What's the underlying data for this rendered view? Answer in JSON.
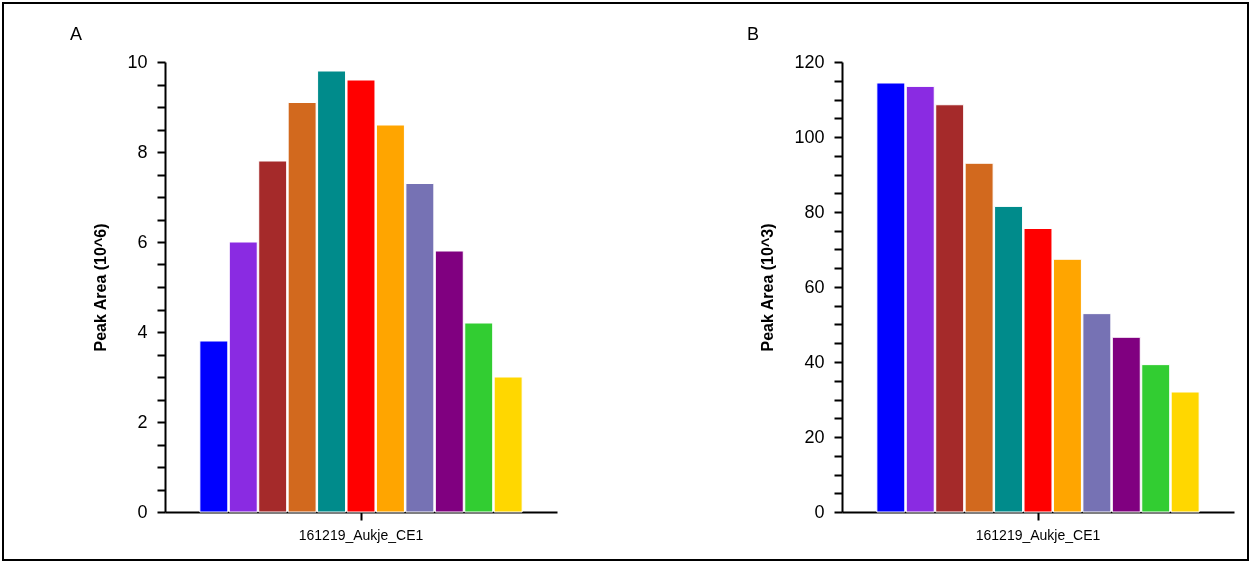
{
  "chart_data": [
    {
      "type": "bar",
      "title": "A",
      "ylabel": "Peak Area (10^6)",
      "categories": [
        "161219_Aukje_CE1"
      ],
      "series": [
        {
          "color": "#0000ff",
          "values": [
            3.8
          ]
        },
        {
          "color": "#8a2be2",
          "values": [
            6.0
          ]
        },
        {
          "color": "#a52a2a",
          "values": [
            7.8
          ]
        },
        {
          "color": "#d2691e",
          "values": [
            9.1
          ]
        },
        {
          "color": "#008b8b",
          "values": [
            9.8
          ]
        },
        {
          "color": "#ff0000",
          "values": [
            9.6
          ]
        },
        {
          "color": "#ffa500",
          "values": [
            8.6
          ]
        },
        {
          "color": "#7672b4",
          "values": [
            7.3
          ]
        },
        {
          "color": "#800080",
          "values": [
            5.8
          ]
        },
        {
          "color": "#32cd32",
          "values": [
            4.2
          ]
        },
        {
          "color": "#ffd700",
          "values": [
            3.0
          ]
        }
      ],
      "ylim": [
        0,
        10
      ],
      "yticks": [
        0,
        {
          "value": 0.5,
          "label": null
        },
        {
          "value": 1,
          "label": null
        },
        {
          "value": 1.5,
          "label": null
        },
        2,
        {
          "value": 2.5,
          "label": null
        },
        {
          "value": 3,
          "label": null
        },
        {
          "value": 3.5,
          "label": null
        },
        4,
        {
          "value": 4.5,
          "label": null
        },
        {
          "value": 5,
          "label": null
        },
        {
          "value": 5.5,
          "label": null
        },
        6,
        {
          "value": 6.5,
          "label": null
        },
        {
          "value": 7,
          "label": null
        },
        {
          "value": 7.5,
          "label": null
        },
        8,
        {
          "value": 8.5,
          "label": null
        },
        {
          "value": 9,
          "label": null
        },
        {
          "value": 9.5,
          "label": null
        },
        10
      ],
      "grid": false
    },
    {
      "type": "bar",
      "title": "B",
      "ylabel": "Peak Area (10^3)",
      "categories": [
        "161219_Aukje_CE1"
      ],
      "series": [
        {
          "color": "#0000ff",
          "values": [
            114.4
          ]
        },
        {
          "color": "#8a2be2",
          "values": [
            113.5
          ]
        },
        {
          "color": "#a52a2a",
          "values": [
            108.6
          ]
        },
        {
          "color": "#d2691e",
          "values": [
            93.0
          ]
        },
        {
          "color": "#008b8b",
          "values": [
            81.5
          ]
        },
        {
          "color": "#ff0000",
          "values": [
            75.6
          ]
        },
        {
          "color": "#ffa500",
          "values": [
            67.4
          ]
        },
        {
          "color": "#7672b4",
          "values": [
            52.9
          ]
        },
        {
          "color": "#800080",
          "values": [
            46.6
          ]
        },
        {
          "color": "#32cd32",
          "values": [
            39.3
          ]
        },
        {
          "color": "#ffd700",
          "values": [
            32.0
          ]
        }
      ],
      "ylim": [
        0,
        120
      ],
      "yticks": [
        0,
        {
          "value": 5,
          "label": null
        },
        {
          "value": 10,
          "label": null
        },
        {
          "value": 15,
          "label": null
        },
        20,
        {
          "value": 25,
          "label": null
        },
        {
          "value": 30,
          "label": null
        },
        {
          "value": 35,
          "label": null
        },
        40,
        {
          "value": 45,
          "label": null
        },
        {
          "value": 50,
          "label": null
        },
        {
          "value": 55,
          "label": null
        },
        60,
        {
          "value": 65,
          "label": null
        },
        {
          "value": 70,
          "label": null
        },
        {
          "value": 75,
          "label": null
        },
        80,
        {
          "value": 85,
          "label": null
        },
        {
          "value": 90,
          "label": null
        },
        {
          "value": 95,
          "label": null
        },
        100,
        {
          "value": 105,
          "label": null
        },
        {
          "value": 110,
          "label": null
        },
        {
          "value": 115,
          "label": null
        },
        120
      ],
      "grid": false
    }
  ]
}
